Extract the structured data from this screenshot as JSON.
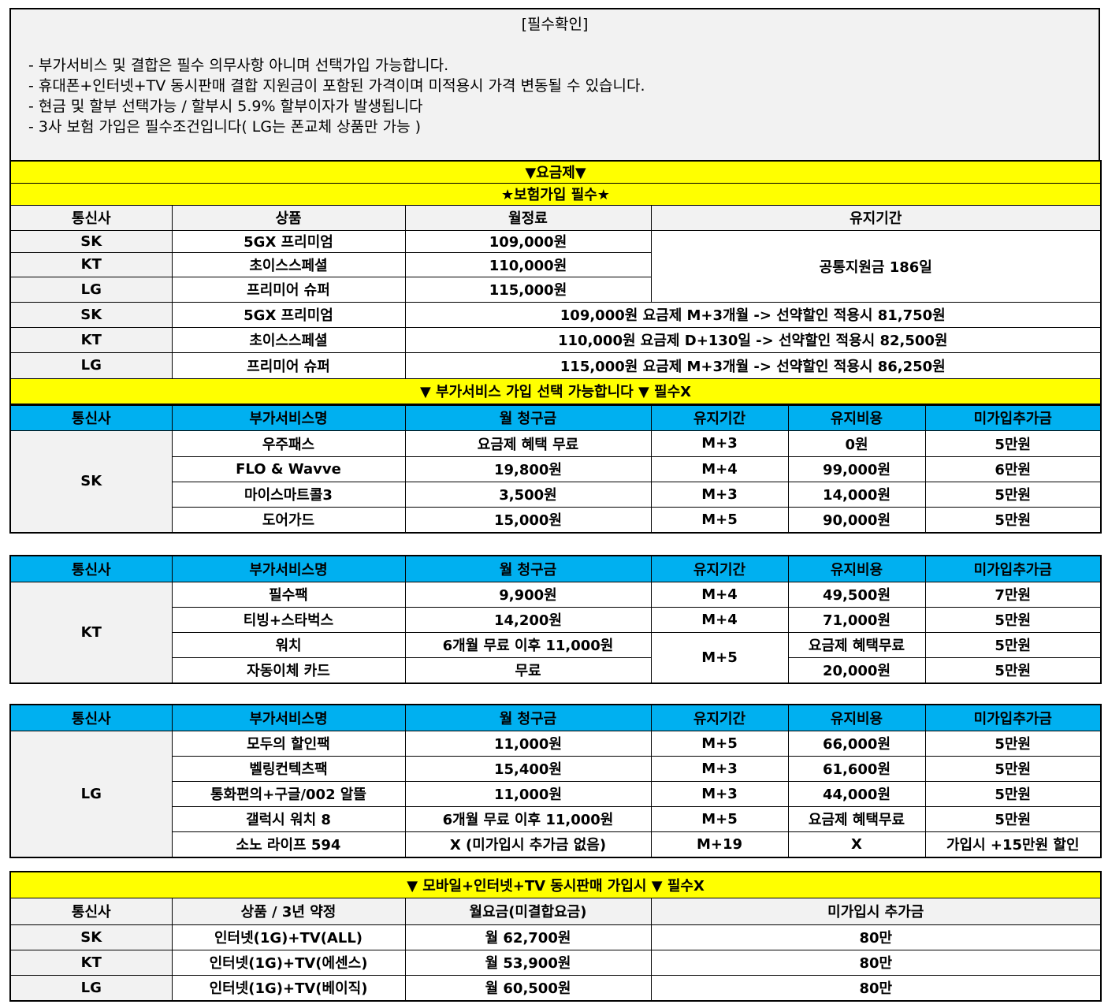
{
  "notice": {
    "title": "[필수확인]",
    "lines": [
      "- 부가서비스 및 결합은 필수 의무사항 아니며 선택가입 가능합니다.",
      "- 휴대폰+인터넷+TV 동시판매 결합 지원금이 포함된 가격이며 미적용시 가격 변동될 수 있습니다.",
      "- 현금 및 할부 선택가능 / 할부시 5.9% 할부이자가 발생됩니다",
      "- 3사 보험 가입은 필수조건입니다( LG는 폰교체 상품만 가능 )"
    ]
  },
  "colors": {
    "yellow": "#ffff00",
    "header_gray": "#f2f2f2",
    "header_blue": "#00b0f0"
  },
  "plans": {
    "banner1": "▼요금제▼",
    "banner2": "★보험가입 필수★",
    "headers": [
      "통신사",
      "상품",
      "월정료",
      "유지기간"
    ],
    "rows": [
      {
        "carrier": "SK",
        "product": "5GX 프리미엄",
        "fee": "109,000원"
      },
      {
        "carrier": "KT",
        "product": "초이스스페셜",
        "fee": "110,000원"
      },
      {
        "carrier": "LG",
        "product": "프리미어 슈퍼",
        "fee": "115,000원"
      }
    ],
    "period": "공통지원금 186일",
    "discount_rows": [
      {
        "carrier": "SK",
        "product": "5GX 프리미엄",
        "note": "109,000원 요금제 M+3개월 -> 선약할인 적용시 81,750원"
      },
      {
        "carrier": "KT",
        "product": "초이스스페셜",
        "note": "110,000원 요금제 D+130일 -> 선약할인 적용시 82,500원"
      },
      {
        "carrier": "LG",
        "product": "프리미어 슈퍼",
        "note": "115,000원 요금제 M+3개월 -> 선약할인 적용시 86,250원"
      }
    ]
  },
  "addons": {
    "banner": "▼ 부가서비스 가입 선택 가능합니다 ▼ 필수X",
    "headers": [
      "통신사",
      "부가서비스명",
      "월 청구금",
      "유지기간",
      "유지비용",
      "미가입추가금"
    ],
    "sk": {
      "carrier": "SK",
      "rows": [
        [
          "우주패스",
          "요금제 혜택 무료",
          "M+3",
          "0원",
          "5만원"
        ],
        [
          "FLO & Wavve",
          "19,800원",
          "M+4",
          "99,000원",
          "6만원"
        ],
        [
          "마이스마트콜3",
          "3,500원",
          "M+3",
          "14,000원",
          "5만원"
        ],
        [
          "도어가드",
          "15,000원",
          "M+5",
          "90,000원",
          "5만원"
        ]
      ]
    },
    "kt": {
      "carrier": "KT",
      "rows": [
        [
          "필수팩",
          "9,900원",
          "M+4",
          "49,500원",
          "7만원"
        ],
        [
          "티빙+스타벅스",
          "14,200원",
          "M+4",
          "71,000원",
          "5만원"
        ],
        [
          "워치",
          "6개월 무료 이후 11,000원",
          "M+5",
          "요금제 혜택무료",
          "5만원"
        ],
        [
          "자동이체 카드",
          "무료",
          "",
          "20,000원",
          "5만원"
        ]
      ]
    },
    "lg": {
      "carrier": "LG",
      "rows": [
        [
          "모두의 할인팩",
          "11,000원",
          "M+5",
          "66,000원",
          "5만원"
        ],
        [
          "벨링컨텍츠팩",
          "15,400원",
          "M+3",
          "61,600원",
          "5만원"
        ],
        [
          "통화편의+구글/002 알뜰",
          "11,000원",
          "M+3",
          "44,000원",
          "5만원"
        ],
        [
          "갤럭시 워치 8",
          "6개월 무료 이후 11,000원",
          "M+5",
          "요금제 혜택무료",
          "5만원"
        ],
        [
          "소노 라이프 594",
          "X (미가입시 추가금 없음)",
          "M+19",
          "X",
          "가입시 +15만원 할인"
        ]
      ]
    }
  },
  "bundle": {
    "banner": "▼ 모바일+인터넷+TV 동시판매 가입시 ▼ 필수X",
    "headers": [
      "통신사",
      "상품 / 3년 약정",
      "월요금(미결합요금)",
      "미가입시 추가금"
    ],
    "rows": [
      [
        "SK",
        "인터넷(1G)+TV(ALL)",
        "월 62,700원",
        "80만"
      ],
      [
        "KT",
        "인터넷(1G)+TV(에센스)",
        "월 53,900원",
        "80만"
      ],
      [
        "LG",
        "인터넷(1G)+TV(베이직)",
        "월 60,500원",
        "80만"
      ]
    ]
  }
}
